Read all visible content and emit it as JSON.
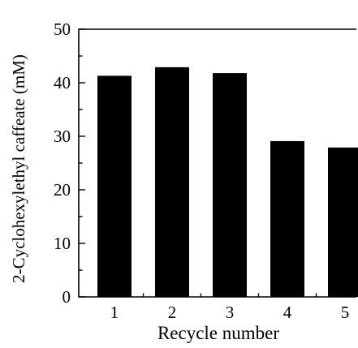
{
  "chart_data": {
    "type": "bar",
    "categories": [
      "1",
      "2",
      "3",
      "4",
      "5"
    ],
    "values": [
      41.3,
      42.9,
      41.8,
      29.1,
      27.9
    ],
    "xlabel": "Recycle number",
    "ylabel": "2-Cyclohexylethyl caffeate (mM)",
    "ylim": [
      0,
      50
    ],
    "yticks": [
      "0",
      "10",
      "20",
      "30",
      "40",
      "50"
    ],
    "grid": false,
    "bar_color": "#000000"
  }
}
